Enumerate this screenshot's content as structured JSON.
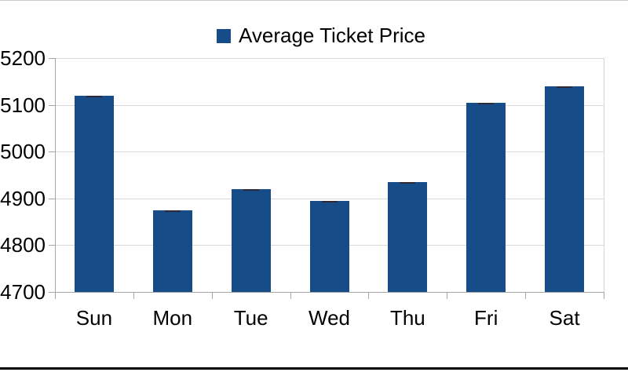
{
  "chart_data": {
    "type": "bar",
    "title": "",
    "legend": {
      "label": "Average Ticket Price",
      "position": "top"
    },
    "categories": [
      "Sun",
      "Mon",
      "Tue",
      "Wed",
      "Thu",
      "Fri",
      "Sat"
    ],
    "values": [
      5120,
      4875,
      4920,
      4895,
      4935,
      5105,
      5140
    ],
    "xlabel": "",
    "ylabel": "",
    "ylim": [
      4700,
      5200
    ],
    "ytick_step": 100,
    "ytick_labels": [
      "4700",
      "4800",
      "4900",
      "5000",
      "5100",
      "5200"
    ],
    "grid": "horizontal",
    "legend_position": "top-center",
    "colors": {
      "series": "#164C87",
      "grid": "#d9d9d9",
      "axis": "#a6a6a6",
      "plot_border": "#d3d3d3",
      "text": "#000000",
      "frame_top": "#cccccc",
      "frame_bottom": "#000000"
    }
  }
}
